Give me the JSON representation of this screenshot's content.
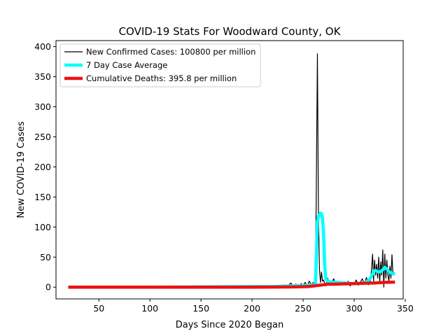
{
  "chart_data": {
    "type": "line",
    "title": "COVID-19 Stats For Woodward County, OK",
    "xlabel": "Days Since 2020 Began",
    "ylabel": "New COVID-19 Cases",
    "xlim": [
      8,
      348
    ],
    "ylim": [
      -19.5,
      410
    ],
    "xticks": [
      50,
      100,
      150,
      200,
      250,
      300,
      350
    ],
    "yticks": [
      0,
      50,
      100,
      150,
      200,
      250,
      300,
      350,
      400
    ],
    "grid": false,
    "legend_position": "top-left",
    "series": [
      {
        "name": "New Confirmed Cases: 100800 per million",
        "color": "#000000",
        "stroke_width": 1.2,
        "x": [
          20,
          60,
          100,
          140,
          180,
          200,
          205,
          210,
          215,
          220,
          225,
          230,
          232,
          235,
          238,
          240,
          243,
          245,
          248,
          250,
          252,
          254,
          256,
          258,
          260,
          261,
          262,
          263,
          264,
          265,
          266,
          267,
          268,
          269,
          270,
          272,
          274,
          276,
          278,
          280,
          282,
          284,
          286,
          288,
          290,
          292,
          294,
          296,
          298,
          300,
          302,
          304,
          306,
          308,
          310,
          312,
          314,
          316,
          317,
          318,
          319,
          320,
          321,
          322,
          323,
          324,
          325,
          326,
          327,
          328,
          329,
          330,
          331,
          332,
          333,
          334,
          335,
          336,
          337,
          338,
          339
        ],
        "y": [
          0,
          0,
          0,
          0,
          0,
          1,
          0,
          2,
          0,
          1,
          3,
          0,
          4,
          2,
          7,
          2,
          5,
          0,
          6,
          3,
          8,
          2,
          10,
          4,
          8,
          0,
          3,
          180,
          388,
          120,
          30,
          8,
          25,
          10,
          12,
          2,
          15,
          5,
          8,
          14,
          3,
          10,
          4,
          6,
          8,
          4,
          10,
          2,
          7,
          5,
          12,
          3,
          8,
          14,
          5,
          16,
          4,
          12,
          30,
          55,
          10,
          45,
          20,
          38,
          15,
          50,
          8,
          42,
          20,
          62,
          0,
          55,
          15,
          45,
          20,
          10,
          35,
          15,
          54,
          20,
          25
        ]
      },
      {
        "name": "7 Day Case Average",
        "color": "#00ffff",
        "stroke_width": 4.5,
        "x": [
          20,
          100,
          200,
          220,
          240,
          255,
          260,
          262,
          263,
          264,
          265,
          266,
          267,
          268,
          269,
          270,
          271,
          272,
          274,
          276,
          280,
          290,
          300,
          305,
          310,
          313,
          316,
          318,
          320,
          322,
          324,
          326,
          328,
          330,
          332,
          334,
          336,
          338,
          340
        ],
        "y": [
          0,
          0,
          1,
          1,
          2,
          3,
          4,
          6,
          50,
          110,
          118,
          120,
          123,
          122,
          115,
          90,
          40,
          15,
          10,
          9,
          8,
          7,
          6,
          6,
          7,
          10,
          15,
          22,
          28,
          27,
          25,
          26,
          29,
          33,
          30,
          26,
          24,
          22,
          22
        ]
      },
      {
        "name": "Cumulative Deaths: 395.8 per million",
        "color": "#ee1111",
        "stroke_width": 4.5,
        "x": [
          20,
          100,
          200,
          240,
          255,
          260,
          265,
          270,
          275,
          280,
          290,
          300,
          310,
          320,
          330,
          340
        ],
        "y": [
          0,
          0,
          0,
          0.5,
          1,
          2,
          3,
          4,
          5,
          5,
          5.5,
          6,
          6.5,
          7,
          8,
          8.5
        ]
      }
    ]
  }
}
